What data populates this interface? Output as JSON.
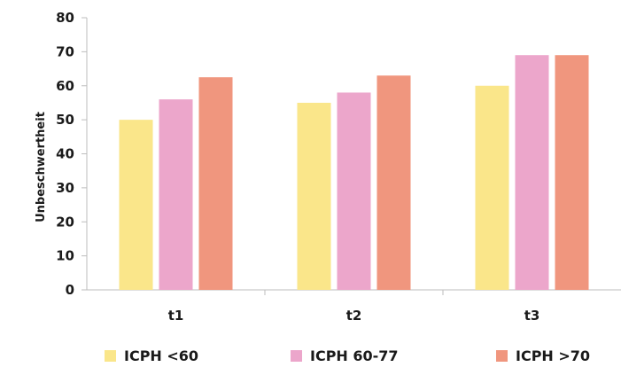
{
  "chart_data": {
    "type": "bar",
    "title": "",
    "xlabel": "",
    "ylabel": "Unbeschwertheit",
    "ylim": [
      0,
      80
    ],
    "yticks": [
      "0",
      "10",
      "20",
      "30",
      "40",
      "50",
      "60",
      "70",
      "80"
    ],
    "categories": [
      "t1",
      "t2",
      "t3"
    ],
    "series": [
      {
        "name": "ICPH <60",
        "color": "#fae68a",
        "values": [
          50,
          55,
          60
        ]
      },
      {
        "name": "ICPH 60-77",
        "color": "#eca6cb",
        "values": [
          56,
          58,
          69
        ]
      },
      {
        "name": "ICPH >70",
        "color": "#f0967e",
        "values": [
          62.5,
          63,
          69
        ]
      }
    ],
    "grid": false,
    "legend_position": "bottom"
  }
}
